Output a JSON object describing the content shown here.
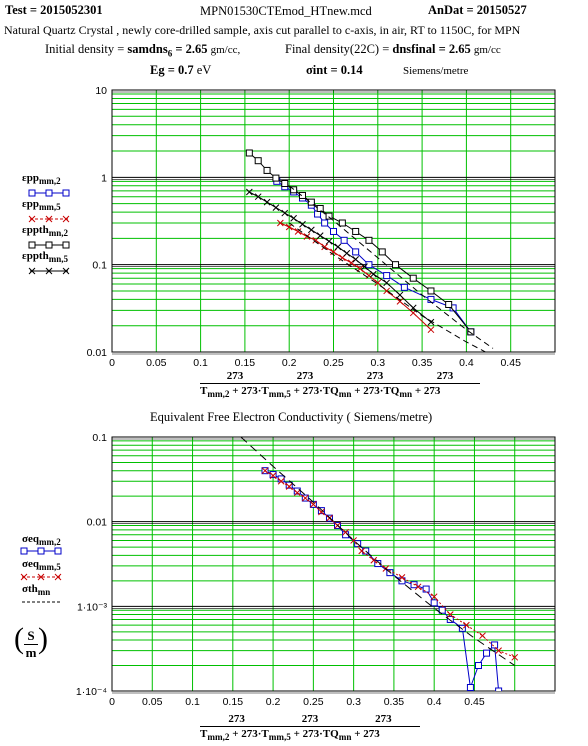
{
  "header": {
    "test_label": "Test",
    "test_value": "2015052301",
    "filename": "MPN01530CTEmod_HTnew.mcd",
    "andat_label": "AnDat",
    "andat_value": "20150527",
    "description": "Natural Quartz Crystal , newly core-drilled sample, axis cut parallel to c-axis, in air, RT to 1150C, for MPN",
    "initial_density_label": "Initial density",
    "initial_density_var": "samdns",
    "initial_density_sub": "6",
    "initial_density_value": "2.65",
    "initial_density_unit": "gm/cc,",
    "final_density_label": "Final density(22C)",
    "final_density_var": "dnsfinal",
    "final_density_value": "2.65",
    "final_density_unit": "gm/cc",
    "eg_label": "Eg",
    "eg_value": "0.7",
    "eg_unit": "eV",
    "sigma_label": "σint",
    "sigma_value": "0.14",
    "sigma_unit": "Siemens/metre"
  },
  "chart_data": [
    {
      "type": "scatter",
      "scale": "log-y",
      "ylim": [
        0.01,
        10
      ],
      "xlim": [
        0,
        0.5
      ],
      "x_ticks": [
        "0",
        "0.05",
        "0.1",
        "0.15",
        "0.2",
        "0.25",
        "0.3",
        "0.35",
        "0.4",
        "0.45"
      ],
      "y_ticks": [
        "10",
        "1",
        "0.1",
        "0.01"
      ],
      "xlabel_num": "273",
      "xlabel_parts": [
        "T",
        "mm,2",
        "+ 273",
        "T",
        "mm,5",
        "+ 273",
        "TQ",
        "mn",
        "+ 273",
        "TQ",
        "mn",
        "+ 273"
      ],
      "legend": [
        {
          "base": "εpp",
          "sub": "mm,2",
          "color": "#0000c8",
          "marker": "square"
        },
        {
          "base": "εpp",
          "sub": "mm,5",
          "color": "#c80000",
          "marker": "x"
        },
        {
          "base": "εppth",
          "sub": "mn,2",
          "color": "#000000",
          "marker": "square"
        },
        {
          "base": "εppth",
          "sub": "mn,5",
          "color": "#000000",
          "marker": "plus"
        }
      ],
      "series": [
        {
          "name": "εpp mm,2",
          "color": "#0000c8",
          "marker": "square",
          "dash": "",
          "x": [
            0.186,
            0.195,
            0.205,
            0.215,
            0.225,
            0.232,
            0.24,
            0.25,
            0.262,
            0.275,
            0.29,
            0.31,
            0.33,
            0.36,
            0.385,
            0.405
          ],
          "y": [
            0.9,
            0.78,
            0.68,
            0.58,
            0.48,
            0.38,
            0.3,
            0.24,
            0.19,
            0.14,
            0.1,
            0.075,
            0.055,
            0.04,
            0.032,
            0.017
          ]
        },
        {
          "name": "εpp mm,5",
          "color": "#c80000",
          "marker": "x",
          "dash": "",
          "x": [
            0.19,
            0.2,
            0.21,
            0.22,
            0.23,
            0.24,
            0.25,
            0.26,
            0.27,
            0.28,
            0.29,
            0.3,
            0.31,
            0.325,
            0.34,
            0.36
          ],
          "y": [
            0.3,
            0.27,
            0.24,
            0.21,
            0.19,
            0.16,
            0.14,
            0.12,
            0.105,
            0.09,
            0.075,
            0.062,
            0.05,
            0.038,
            0.028,
            0.018
          ]
        },
        {
          "name": "εppth mn,2",
          "color": "#000000",
          "marker": "square",
          "dash": "",
          "x": [
            0.155,
            0.165,
            0.175,
            0.185,
            0.195,
            0.205,
            0.215,
            0.225,
            0.235,
            0.245,
            0.26,
            0.275,
            0.29,
            0.305,
            0.32,
            0.34,
            0.36,
            0.38,
            0.405
          ],
          "y": [
            1.9,
            1.55,
            1.2,
            0.98,
            0.85,
            0.72,
            0.62,
            0.52,
            0.44,
            0.36,
            0.3,
            0.24,
            0.19,
            0.14,
            0.1,
            0.07,
            0.05,
            0.035,
            0.017
          ]
        },
        {
          "name": "εppth mn,5",
          "color": "#000000",
          "marker": "plus",
          "dash": "",
          "x": [
            0.155,
            0.165,
            0.175,
            0.185,
            0.195,
            0.205,
            0.215,
            0.225,
            0.235,
            0.245,
            0.255,
            0.265,
            0.275,
            0.285,
            0.295,
            0.31,
            0.325,
            0.34,
            0.36
          ],
          "y": [
            0.68,
            0.6,
            0.52,
            0.45,
            0.39,
            0.34,
            0.29,
            0.25,
            0.215,
            0.185,
            0.16,
            0.135,
            0.115,
            0.095,
            0.078,
            0.062,
            0.045,
            0.032,
            0.022
          ]
        },
        {
          "name": "fit",
          "color": "#000000",
          "marker": "none",
          "dash": "6,4",
          "x": [
            0.2,
            0.25,
            0.3,
            0.35,
            0.4,
            0.43
          ],
          "y": [
            0.8,
            0.32,
            0.12,
            0.045,
            0.018,
            0.011
          ]
        },
        {
          "name": "fit2",
          "color": "#000000",
          "marker": "none",
          "dash": "6,4",
          "x": [
            0.2,
            0.25,
            0.3,
            0.35,
            0.4,
            0.44
          ],
          "y": [
            0.3,
            0.13,
            0.06,
            0.026,
            0.013,
            0.008
          ]
        }
      ]
    },
    {
      "type": "scatter",
      "scale": "log-y",
      "title": "Equivalent Free Electron Conductivity ( Siemens/metre)",
      "ylim": [
        0.0001,
        0.1
      ],
      "xlim": [
        0,
        0.55
      ],
      "x_ticks": [
        "0",
        "0.05",
        "0.1",
        "0.15",
        "0.2",
        "0.25",
        "0.3",
        "0.35",
        "0.4",
        "0.45"
      ],
      "y_ticks": [
        "0.1",
        "0.01",
        "1·10⁻³",
        "1·10⁻⁴"
      ],
      "xlabel_num": "273",
      "xlabel_parts": [
        "T",
        "mm,2",
        "+ 273",
        "T",
        "mm,5",
        "+ 273",
        "TQ",
        "mn",
        "+ 273"
      ],
      "ylabel_num": "S",
      "ylabel_den": "m",
      "legend": [
        {
          "base": "σeq",
          "sub": "mm,2",
          "color": "#0000c8",
          "marker": "square"
        },
        {
          "base": "σeq",
          "sub": "mm,5",
          "color": "#c80000",
          "marker": "x"
        },
        {
          "base": "σth",
          "sub": "mn",
          "color": "#000000",
          "marker": "none"
        }
      ],
      "series": [
        {
          "name": "σeq mm,2",
          "color": "#0000c8",
          "marker": "square",
          "dash": "",
          "x": [
            0.19,
            0.2,
            0.21,
            0.22,
            0.23,
            0.24,
            0.25,
            0.26,
            0.27,
            0.28,
            0.29,
            0.305,
            0.315,
            0.33,
            0.345,
            0.36,
            0.375,
            0.39,
            0.4,
            0.41,
            0.42,
            0.435,
            0.445,
            0.455,
            0.465,
            0.475,
            0.48
          ],
          "y": [
            0.04,
            0.036,
            0.032,
            0.027,
            0.023,
            0.019,
            0.016,
            0.0135,
            0.011,
            0.009,
            0.007,
            0.0055,
            0.0045,
            0.0032,
            0.0025,
            0.002,
            0.0018,
            0.0016,
            0.0011,
            0.0009,
            0.0007,
            0.00055,
            0.00011,
            0.0002,
            0.00028,
            0.00035,
            0.0001
          ]
        },
        {
          "name": "σeq mm,5",
          "color": "#c80000",
          "marker": "x",
          "dash": "2,2",
          "x": [
            0.19,
            0.2,
            0.21,
            0.22,
            0.23,
            0.24,
            0.25,
            0.26,
            0.27,
            0.28,
            0.29,
            0.3,
            0.31,
            0.325,
            0.34,
            0.36,
            0.38,
            0.4,
            0.42,
            0.44,
            0.46,
            0.48,
            0.5
          ],
          "y": [
            0.04,
            0.035,
            0.03,
            0.026,
            0.022,
            0.019,
            0.016,
            0.013,
            0.011,
            0.009,
            0.0075,
            0.006,
            0.0045,
            0.0035,
            0.0028,
            0.0022,
            0.0017,
            0.0013,
            0.0008,
            0.0006,
            0.00045,
            0.0003,
            0.00025
          ]
        },
        {
          "name": "σth mn",
          "color": "#000000",
          "marker": "none",
          "dash": "8,5",
          "x": [
            0.16,
            0.2,
            0.25,
            0.3,
            0.35,
            0.4,
            0.45,
            0.5
          ],
          "y": [
            0.1,
            0.045,
            0.017,
            0.006,
            0.0023,
            0.00095,
            0.00042,
            0.0002
          ]
        }
      ]
    }
  ]
}
